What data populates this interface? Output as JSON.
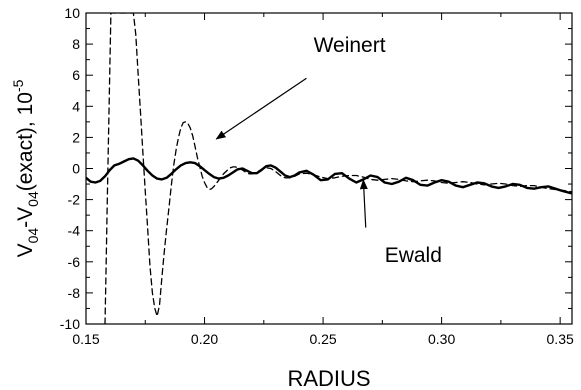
{
  "chart_data": {
    "type": "line",
    "xlabel": "RADIUS",
    "ylabel": {
      "main": "V",
      "sub1": "04",
      "mid": "-V",
      "sub2": "04",
      "tail": "(exact), 10",
      "sup": "-5"
    },
    "xlim": [
      0.15,
      0.355
    ],
    "ylim": [
      -10,
      10
    ],
    "x_ticks": [
      0.15,
      0.2,
      0.25,
      0.3,
      0.35
    ],
    "x_tick_labels": [
      "0.15",
      "0.20",
      "0.25",
      "0.30",
      "0.35"
    ],
    "y_ticks": [
      -10,
      -8,
      -6,
      -4,
      -2,
      0,
      2,
      4,
      6,
      8,
      10
    ],
    "y_tick_labels": [
      "-10",
      "-8",
      "-6",
      "-4",
      "-2",
      "0",
      "2",
      "4",
      "6",
      "8",
      "10"
    ],
    "grid": false,
    "series": [
      {
        "name": "Weinert",
        "style": "dashed",
        "x": [
          0.158,
          0.1585,
          0.159,
          0.1595,
          0.16,
          0.1605,
          0.161,
          0.162,
          0.163,
          0.164,
          0.165,
          0.166,
          0.167,
          0.168,
          0.169,
          0.17,
          0.171,
          0.172,
          0.173,
          0.174,
          0.175,
          0.176,
          0.177,
          0.178,
          0.179,
          0.18,
          0.181,
          0.182,
          0.183,
          0.184,
          0.185,
          0.186,
          0.187,
          0.188,
          0.189,
          0.19,
          0.191,
          0.192,
          0.193,
          0.194,
          0.195,
          0.196,
          0.197,
          0.198,
          0.199,
          0.2,
          0.201,
          0.202,
          0.203,
          0.204,
          0.205,
          0.206,
          0.207,
          0.208,
          0.209,
          0.21,
          0.211,
          0.212,
          0.213,
          0.214,
          0.215,
          0.216,
          0.217,
          0.218,
          0.219,
          0.22,
          0.222,
          0.224,
          0.226,
          0.228,
          0.23,
          0.232,
          0.234,
          0.236,
          0.238,
          0.24,
          0.243,
          0.246,
          0.249,
          0.252,
          0.255,
          0.258,
          0.261,
          0.264,
          0.267,
          0.27,
          0.273,
          0.276,
          0.279,
          0.282,
          0.285,
          0.288,
          0.291,
          0.294,
          0.297,
          0.3,
          0.303,
          0.306,
          0.309,
          0.312,
          0.315,
          0.318,
          0.321,
          0.324,
          0.327,
          0.33,
          0.333,
          0.336,
          0.339,
          0.342,
          0.345,
          0.348,
          0.351,
          0.355
        ],
        "values": [
          -10,
          -6,
          -2,
          2,
          6,
          10,
          10,
          10,
          10,
          10,
          10,
          10,
          10,
          10,
          10,
          10,
          8.6,
          6.0,
          3.6,
          1.0,
          -1.5,
          -3.8,
          -6.3,
          -8.0,
          -9.0,
          -9.5,
          -8.8,
          -7.0,
          -5.4,
          -3.9,
          -2.5,
          -1.1,
          0.2,
          1.2,
          2.0,
          2.6,
          2.95,
          3.0,
          2.9,
          2.6,
          2.1,
          1.4,
          0.7,
          0.1,
          -0.5,
          -0.9,
          -1.2,
          -1.35,
          -1.3,
          -1.15,
          -0.95,
          -0.75,
          -0.55,
          -0.35,
          -0.2,
          -0.05,
          0.05,
          0.1,
          0.1,
          0.05,
          0.0,
          -0.1,
          -0.2,
          -0.3,
          -0.35,
          -0.35,
          -0.25,
          -0.05,
          0.05,
          0.0,
          -0.2,
          -0.45,
          -0.6,
          -0.6,
          -0.5,
          -0.35,
          -0.3,
          -0.4,
          -0.55,
          -0.65,
          -0.6,
          -0.5,
          -0.45,
          -0.45,
          -0.55,
          -0.7,
          -0.75,
          -0.7,
          -0.65,
          -0.7,
          -0.8,
          -0.85,
          -0.8,
          -0.75,
          -0.8,
          -0.9,
          -0.95,
          -0.9,
          -0.85,
          -0.9,
          -1.0,
          -1.05,
          -1.0,
          -0.95,
          -1.0,
          -1.1,
          -1.15,
          -1.1,
          -1.1,
          -1.2,
          -1.3,
          -1.35,
          -1.4,
          -1.5
        ]
      },
      {
        "name": "Ewald",
        "style": "solid",
        "x": [
          0.15,
          0.152,
          0.154,
          0.156,
          0.158,
          0.16,
          0.162,
          0.164,
          0.166,
          0.168,
          0.17,
          0.172,
          0.174,
          0.176,
          0.178,
          0.18,
          0.182,
          0.184,
          0.186,
          0.188,
          0.19,
          0.192,
          0.194,
          0.196,
          0.198,
          0.2,
          0.202,
          0.204,
          0.206,
          0.208,
          0.21,
          0.212,
          0.214,
          0.216,
          0.218,
          0.22,
          0.222,
          0.224,
          0.226,
          0.228,
          0.23,
          0.232,
          0.234,
          0.236,
          0.238,
          0.24,
          0.243,
          0.246,
          0.249,
          0.252,
          0.255,
          0.258,
          0.261,
          0.264,
          0.267,
          0.27,
          0.273,
          0.276,
          0.279,
          0.282,
          0.285,
          0.288,
          0.291,
          0.294,
          0.297,
          0.3,
          0.303,
          0.306,
          0.309,
          0.312,
          0.315,
          0.318,
          0.321,
          0.324,
          0.327,
          0.33,
          0.333,
          0.336,
          0.339,
          0.342,
          0.345,
          0.348,
          0.351,
          0.355
        ],
        "values": [
          -0.6,
          -0.85,
          -0.9,
          -0.8,
          -0.5,
          -0.1,
          0.2,
          0.3,
          0.45,
          0.6,
          0.65,
          0.5,
          0.2,
          -0.15,
          -0.45,
          -0.65,
          -0.7,
          -0.6,
          -0.35,
          -0.05,
          0.2,
          0.35,
          0.4,
          0.35,
          0.15,
          -0.1,
          -0.35,
          -0.55,
          -0.65,
          -0.6,
          -0.45,
          -0.25,
          -0.05,
          0.0,
          -0.15,
          -0.3,
          -0.3,
          -0.1,
          0.15,
          0.2,
          0.05,
          -0.2,
          -0.45,
          -0.55,
          -0.45,
          -0.25,
          -0.15,
          -0.4,
          -0.75,
          -0.7,
          -0.35,
          -0.3,
          -0.65,
          -0.9,
          -0.7,
          -0.45,
          -0.55,
          -0.9,
          -1.0,
          -0.85,
          -0.6,
          -0.75,
          -1.05,
          -1.1,
          -0.9,
          -0.75,
          -0.85,
          -1.1,
          -1.2,
          -1.05,
          -0.9,
          -0.95,
          -1.15,
          -1.25,
          -1.15,
          -1.0,
          -1.05,
          -1.25,
          -1.3,
          -1.2,
          -1.15,
          -1.3,
          -1.45,
          -1.6
        ]
      }
    ],
    "annotations": [
      {
        "text": "Weinert",
        "label_x": 0.246,
        "label_y": 7.5,
        "arrow_from_x": 0.243,
        "arrow_from_y": 5.8,
        "arrow_to_x": 0.205,
        "arrow_to_y": 1.9
      },
      {
        "text": "Ewald",
        "label_x": 0.276,
        "label_y": -6.0,
        "arrow_from_x": 0.268,
        "arrow_from_y": -3.8,
        "arrow_to_x": 0.267,
        "arrow_to_y": -0.75
      }
    ]
  }
}
